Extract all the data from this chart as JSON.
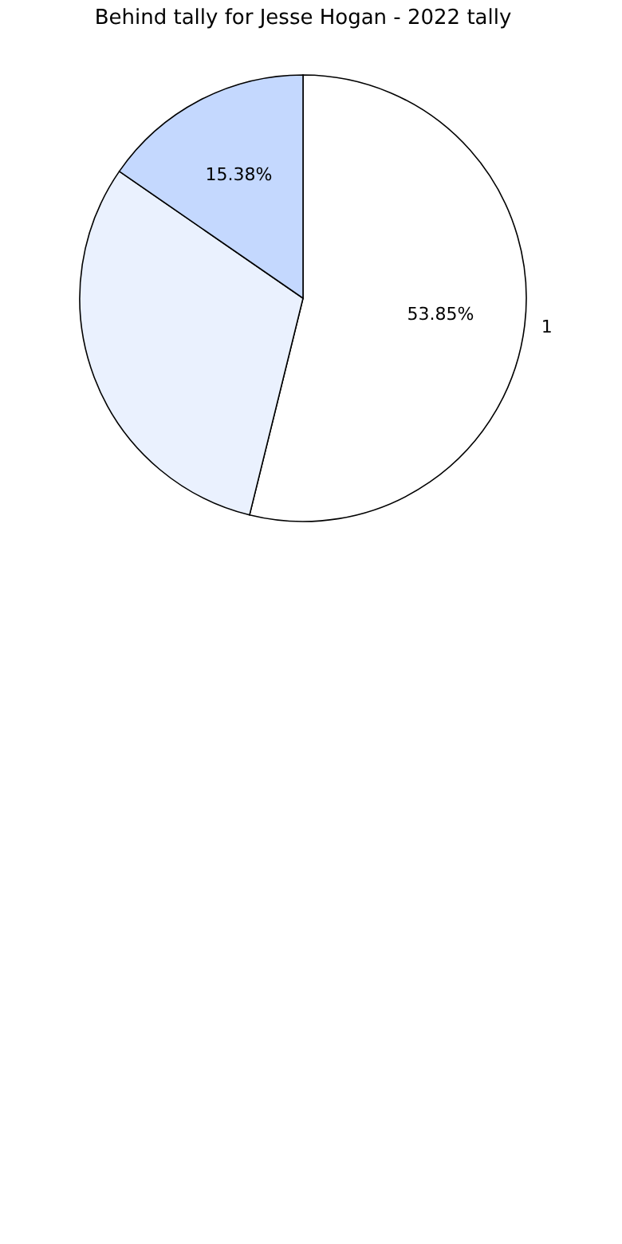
{
  "chart_data": {
    "type": "pie",
    "title": "Behind tally for Jesse Hogan - 2022 tally",
    "categories": [
      "1",
      null,
      null
    ],
    "values": [
      53.85,
      30.77,
      15.38
    ],
    "colors": [
      "#ffffff",
      "#eaf1fe",
      "#c4d8fe"
    ],
    "value_labels": [
      "53.85%",
      null,
      "15.38%"
    ]
  }
}
